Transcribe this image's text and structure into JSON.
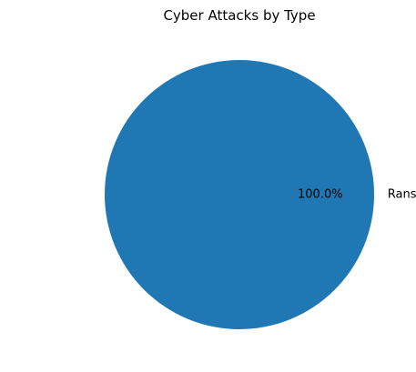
{
  "chart_data": {
    "type": "pie",
    "title": "Cyber Attacks by Type",
    "slices": [
      {
        "label": "Ransomware",
        "value": 100,
        "percent_label": "100.0%",
        "color": "#1f77b4"
      }
    ],
    "start_angle_deg": 180,
    "legend": "none"
  }
}
